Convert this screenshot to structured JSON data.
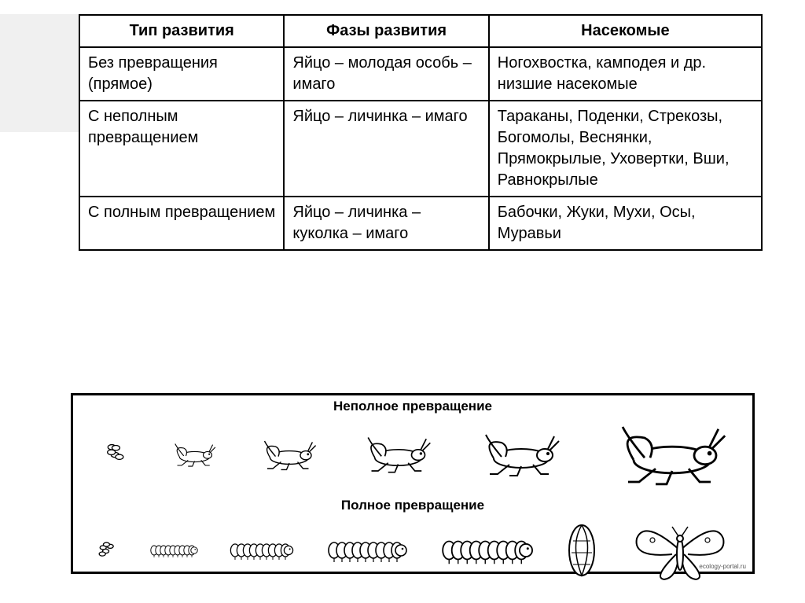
{
  "table": {
    "columns": [
      "Тип развития",
      "Фазы развития",
      "Насекомые"
    ],
    "rows": [
      [
        "Без превращения (прямое)",
        "Яйцо – молодая особь – имаго",
        "Ногохвостка, камподея и др. низшие насекомые"
      ],
      [
        "С неполным превращением",
        "Яйцо – личинка – имаго",
        "Тараканы, Поденки, Стрекозы, Богомолы, Веснянки, Прямокрылые, Уховертки, Вши, Равнокрылые"
      ],
      [
        "С полным превращением",
        "Яйцо – личинка – куколка – имаго",
        "Бабочки, Жуки, Мухи, Осы, Муравьи"
      ]
    ],
    "col_widths": [
      "30%",
      "30%",
      "40%"
    ],
    "border_color": "#000000",
    "background_color": "#ffffff",
    "header_fontweight": "bold",
    "fontsize": 20
  },
  "diagram": {
    "title_incomplete": "Неполное превращение",
    "title_complete": "Полное превращение",
    "credit": "ecology-portal.ru",
    "border_color": "#000000",
    "background_color": "#ffffff",
    "title_fontsize": 17,
    "stroke": "#000000",
    "incomplete_stages": {
      "type": "sequence",
      "count": 6,
      "scales": [
        0.35,
        0.55,
        0.7,
        0.85,
        1.0,
        1.4
      ],
      "first_is_egg": true
    },
    "complete_stages": {
      "type": "sequence",
      "count": 7,
      "larva_scales": [
        0.6,
        0.8,
        1.0,
        1.15
      ],
      "first_is_egg": true,
      "has_pupa": true,
      "has_butterfly": true
    }
  }
}
